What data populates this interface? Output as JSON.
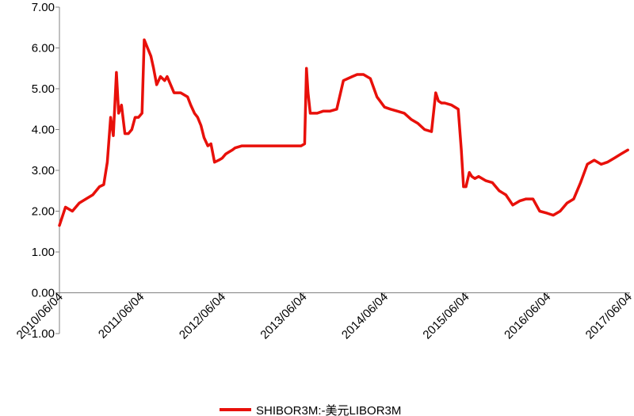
{
  "chart_data": {
    "type": "line",
    "title": "",
    "xlabel": "",
    "ylabel": "",
    "ylim": [
      -1.0,
      7.0
    ],
    "y_ticks": [
      -1.0,
      0.0,
      1.0,
      2.0,
      3.0,
      4.0,
      5.0,
      6.0,
      7.0
    ],
    "y_tick_labels": [
      "-1.00",
      "0.00",
      "1.00",
      "2.00",
      "3.00",
      "4.00",
      "5.00",
      "6.00",
      "7.00"
    ],
    "x_tick_labels": [
      "2010/06/04",
      "2011/06/04",
      "2012/06/04",
      "2013/06/04",
      "2014/06/04",
      "2015/06/04",
      "2016/06/04",
      "2017/06/04"
    ],
    "grid": false,
    "legend_position": "bottom",
    "series": [
      {
        "name": "SHIBOR3M:-美元LIBOR3M",
        "color": "#e8100a",
        "x": [
          "2010/06/04",
          "2010/07/01",
          "2010/08/01",
          "2010/09/01",
          "2010/10/01",
          "2010/11/01",
          "2010/12/01",
          "2010/12/20",
          "2011/01/05",
          "2011/01/20",
          "2011/02/01",
          "2011/02/15",
          "2011/02/25",
          "2011/03/10",
          "2011/03/25",
          "2011/04/10",
          "2011/04/25",
          "2011/05/10",
          "2011/05/25",
          "2011/06/10",
          "2011/06/20",
          "2011/07/05",
          "2011/07/20",
          "2011/08/01",
          "2011/08/15",
          "2011/09/01",
          "2011/09/20",
          "2011/10/01",
          "2011/11/01",
          "2011/12/01",
          "2012/01/01",
          "2012/01/15",
          "2012/02/01",
          "2012/02/15",
          "2012/03/01",
          "2012/03/15",
          "2012/04/01",
          "2012/04/15",
          "2012/05/01",
          "2012/05/20",
          "2012/06/04",
          "2012/06/20",
          "2012/07/05",
          "2012/07/20",
          "2012/08/01",
          "2012/09/01",
          "2012/10/01",
          "2012/11/01",
          "2012/12/01",
          "2013/01/01",
          "2013/03/01",
          "2013/05/01",
          "2013/05/25",
          "2013/06/10",
          "2013/06/18",
          "2013/06/25",
          "2013/07/05",
          "2013/07/20",
          "2013/08/05",
          "2013/09/01",
          "2013/10/01",
          "2013/11/01",
          "2013/12/01",
          "2014/01/10",
          "2014/02/01",
          "2014/03/01",
          "2014/04/01",
          "2014/05/01",
          "2014/06/04",
          "2014/07/01",
          "2014/08/01",
          "2014/09/01",
          "2014/10/01",
          "2014/11/01",
          "2014/12/01",
          "2015/01/01",
          "2015/01/20",
          "2015/02/01",
          "2015/02/15",
          "2015/03/01",
          "2015/04/01",
          "2015/05/01",
          "2015/05/15",
          "2015/05/25",
          "2015/06/05",
          "2015/06/20",
          "2015/07/01",
          "2015/07/15",
          "2015/08/01",
          "2015/09/01",
          "2015/10/01",
          "2015/11/01",
          "2015/12/01",
          "2016/01/01",
          "2016/02/01",
          "2016/03/01",
          "2016/04/01",
          "2016/05/01",
          "2016/06/04",
          "2016/07/01",
          "2016/08/01",
          "2016/09/01",
          "2016/10/01",
          "2016/11/01",
          "2016/12/01",
          "2017/01/01",
          "2017/02/01",
          "2017/03/01",
          "2017/04/01",
          "2017/05/01",
          "2017/06/01"
        ],
        "values": [
          1.65,
          2.1,
          2.0,
          2.2,
          2.3,
          2.4,
          2.6,
          2.65,
          3.2,
          4.3,
          3.85,
          5.4,
          4.4,
          4.6,
          3.9,
          3.9,
          4.0,
          4.3,
          4.3,
          4.4,
          6.2,
          6.0,
          5.8,
          5.5,
          5.1,
          5.3,
          5.2,
          5.3,
          4.9,
          4.9,
          4.8,
          4.6,
          4.4,
          4.3,
          4.1,
          3.8,
          3.6,
          3.65,
          3.2,
          3.25,
          3.3,
          3.4,
          3.45,
          3.5,
          3.55,
          3.6,
          3.6,
          3.6,
          3.6,
          3.6,
          3.6,
          3.6,
          3.6,
          3.65,
          5.5,
          4.9,
          4.4,
          4.4,
          4.4,
          4.45,
          4.45,
          4.5,
          5.2,
          5.3,
          5.35,
          5.35,
          5.25,
          4.8,
          4.55,
          4.5,
          4.45,
          4.4,
          4.25,
          4.15,
          4.0,
          3.95,
          4.9,
          4.7,
          4.65,
          4.65,
          4.6,
          4.5,
          3.5,
          2.6,
          2.6,
          2.95,
          2.85,
          2.8,
          2.85,
          2.75,
          2.7,
          2.5,
          2.4,
          2.15,
          2.25,
          2.3,
          2.3,
          2.0,
          1.95,
          1.9,
          2.0,
          2.2,
          2.3,
          2.7,
          3.15,
          3.25,
          3.15,
          3.2,
          3.3,
          3.4,
          3.5
        ]
      }
    ]
  }
}
